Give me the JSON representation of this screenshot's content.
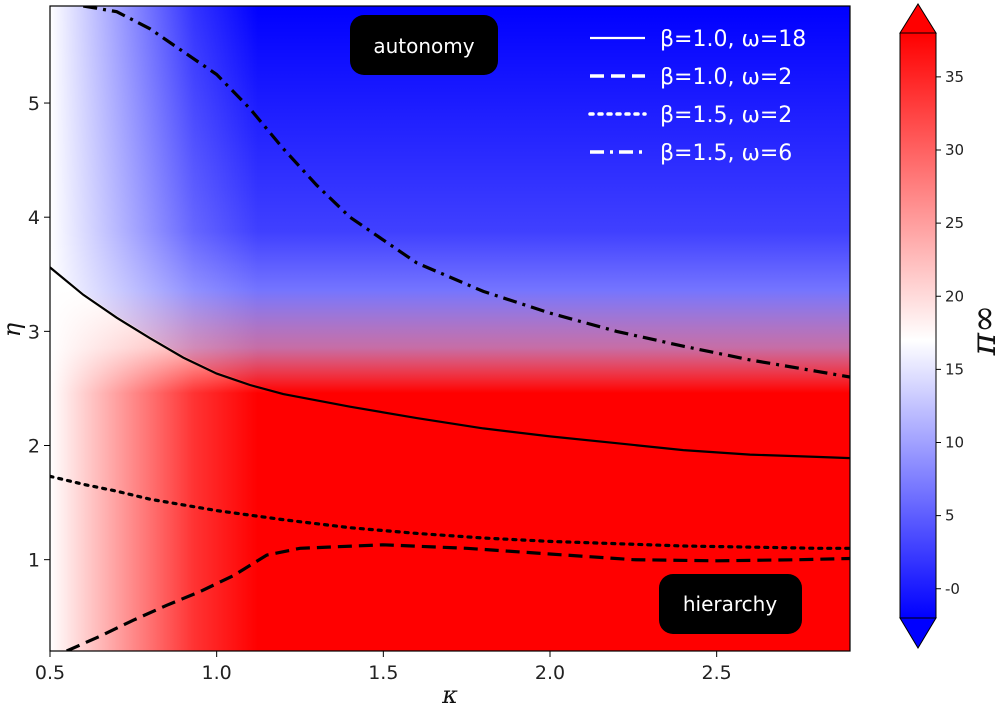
{
  "chart_data": {
    "type": "heatmap",
    "xlabel": "κ",
    "ylabel": "η",
    "xlim": [
      0.5,
      2.9
    ],
    "ylim": [
      0.2,
      5.85
    ],
    "x_ticks": [
      "0.5",
      "1.0",
      "1.5",
      "2.0",
      "2.5"
    ],
    "x_tick_values": [
      0.5,
      1.0,
      1.5,
      2.0,
      2.5
    ],
    "y_ticks": [
      "1",
      "2",
      "3",
      "4",
      "5"
    ],
    "y_tick_values": [
      1,
      2,
      3,
      4,
      5
    ],
    "colorbar": {
      "label": "π∞",
      "ticks": [
        "-0",
        "5",
        "10",
        "15",
        "20",
        "25",
        "30",
        "35"
      ],
      "tick_values": [
        0,
        5,
        10,
        15,
        20,
        25,
        30,
        35
      ],
      "range": [
        -2,
        38
      ],
      "extend": "both",
      "colormap": [
        "#0000ff",
        "#ffffff",
        "#ff0000"
      ],
      "center_value": 17
    },
    "annotations": [
      {
        "text": "autonomy",
        "region": "upper"
      },
      {
        "text": "hierarchy",
        "region": "lower-right"
      }
    ],
    "legend_position": "top-right",
    "series": [
      {
        "name": "β=1.0, ω=18",
        "style": "solid",
        "x": [
          0.5,
          0.6,
          0.7,
          0.8,
          0.9,
          1.0,
          1.1,
          1.2,
          1.4,
          1.6,
          1.8,
          2.0,
          2.2,
          2.4,
          2.6,
          2.8,
          2.9
        ],
        "y": [
          3.56,
          3.32,
          3.12,
          2.94,
          2.77,
          2.63,
          2.53,
          2.45,
          2.34,
          2.24,
          2.15,
          2.08,
          2.02,
          1.96,
          1.92,
          1.9,
          1.89
        ]
      },
      {
        "name": "β=1.0, ω=2",
        "style": "dashed",
        "x": [
          0.55,
          0.65,
          0.75,
          0.85,
          0.95,
          1.05,
          1.15,
          1.25,
          1.5,
          1.75,
          2.0,
          2.25,
          2.5,
          2.75,
          2.9
        ],
        "y": [
          0.2,
          0.33,
          0.47,
          0.6,
          0.72,
          0.86,
          1.04,
          1.1,
          1.13,
          1.1,
          1.05,
          1.0,
          0.99,
          1.0,
          1.01
        ]
      },
      {
        "name": "β=1.5, ω=2",
        "style": "dotted",
        "x": [
          0.5,
          0.6,
          0.7,
          0.8,
          0.9,
          1.0,
          1.2,
          1.4,
          1.6,
          1.8,
          2.0,
          2.2,
          2.4,
          2.6,
          2.8,
          2.9
        ],
        "y": [
          1.73,
          1.66,
          1.6,
          1.53,
          1.48,
          1.43,
          1.35,
          1.28,
          1.23,
          1.19,
          1.16,
          1.14,
          1.12,
          1.11,
          1.1,
          1.1
        ]
      },
      {
        "name": "β=1.5, ω=6",
        "style": "dashdot",
        "x": [
          0.6,
          0.7,
          0.8,
          0.9,
          1.0,
          1.1,
          1.2,
          1.3,
          1.4,
          1.6,
          1.8,
          2.0,
          2.2,
          2.4,
          2.6,
          2.8,
          2.9
        ],
        "y": [
          5.85,
          5.8,
          5.65,
          5.45,
          5.25,
          4.95,
          4.6,
          4.28,
          4.0,
          3.6,
          3.35,
          3.16,
          3.0,
          2.87,
          2.75,
          2.65,
          2.6
        ]
      }
    ]
  }
}
